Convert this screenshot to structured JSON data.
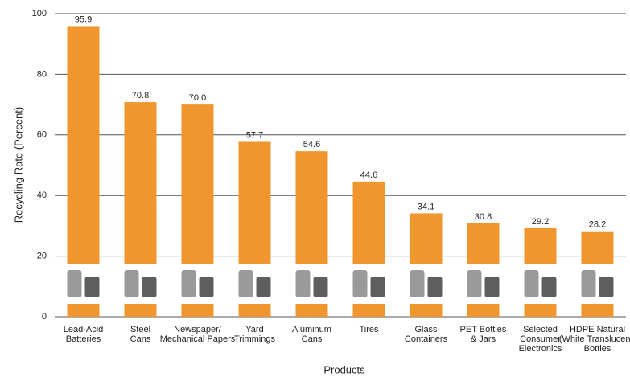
{
  "chart_data": {
    "type": "bar",
    "x_label": "Products",
    "y_label": "Recycling Rate (Percent)",
    "categories": [
      [
        "Lead-Acid",
        "Batteries"
      ],
      [
        "Steel",
        "Cans"
      ],
      [
        "Newspaper/",
        "Mechanical Papers"
      ],
      [
        "Yard",
        "Trimmings"
      ],
      [
        "Aluminum",
        "Cans"
      ],
      [
        "Tires"
      ],
      [
        "Glass",
        "Containers"
      ],
      [
        "PET Bottles",
        "& Jars"
      ],
      [
        "Selected",
        "Consumer",
        "Electronics"
      ],
      [
        "HDPE Natural",
        "(White Translucent)",
        "Bottles"
      ]
    ],
    "values": [
      95.9,
      70.8,
      70.0,
      57.7,
      54.6,
      44.6,
      34.1,
      30.8,
      29.2,
      28.2
    ],
    "value_labels": [
      "95.9",
      "70.8",
      "70.0",
      "57.7",
      "54.6",
      "44.6",
      "34.1",
      "30.8",
      "29.2",
      "28.2"
    ],
    "color": "#f0962e",
    "ylim": [
      0,
      100
    ],
    "yticks": [
      0,
      20,
      40,
      60,
      80,
      100
    ],
    "grid": true
  }
}
